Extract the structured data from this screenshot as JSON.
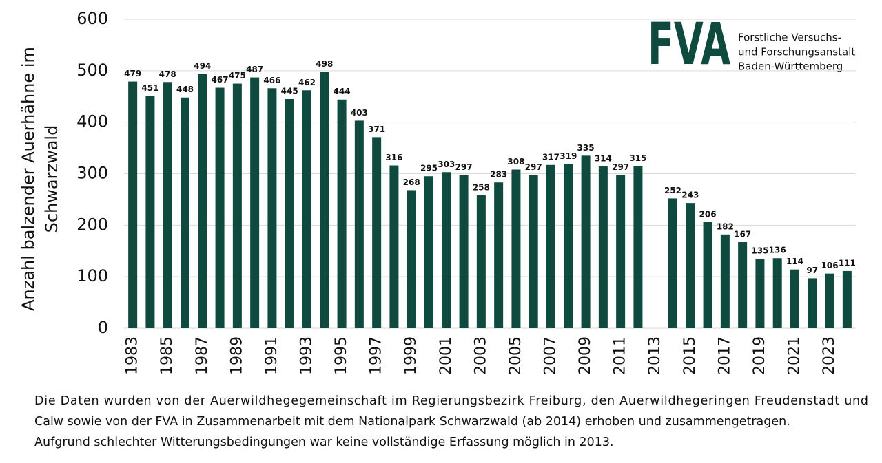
{
  "chart_data": {
    "type": "bar",
    "y_label": [
      "Anzahl balzender Auerhähne im",
      "Schwarzwald"
    ],
    "categories": [
      "1983",
      null,
      "1985",
      null,
      "1987",
      null,
      "1989",
      null,
      "1991",
      null,
      "1993",
      null,
      "1995",
      null,
      "1997",
      null,
      "1999",
      null,
      "2001",
      null,
      "2003",
      null,
      "2005",
      null,
      "2007",
      null,
      "2009",
      null,
      "2011",
      null,
      "2013",
      null,
      "2015",
      null,
      "2017",
      null,
      "2019",
      null,
      "2021",
      null,
      "2023",
      null
    ],
    "values": [
      479,
      451,
      478,
      448,
      494,
      467,
      475,
      487,
      466,
      445,
      462,
      498,
      444,
      403,
      371,
      316,
      268,
      295,
      303,
      297,
      258,
      283,
      308,
      297,
      317,
      319,
      335,
      314,
      297,
      315,
      null,
      252,
      243,
      206,
      182,
      167,
      135,
      136,
      114,
      97,
      106,
      111
    ],
    "color": "#0e4a3e",
    "ylim": [
      0,
      600
    ],
    "yticks": [
      0,
      100,
      200,
      300,
      400,
      500,
      600
    ],
    "grid": true,
    "logo": {
      "mark": "FVA",
      "lines": [
        "Forstliche Versuchs-",
        "und Forschungsanstalt",
        "Baden-Württemberg"
      ]
    },
    "note": [
      "Die Daten wurden von der Auerwildhegegemeinschaft im Regierungsbezirk Freiburg, den Auerwildhegeringen Freudenstadt und",
      "Calw sowie von der FVA in Zusammenarbeit mit dem Nationalpark Schwarzwald (ab 2014) erhoben und zusammengetragen.",
      "Aufgrund schlechter Witterungsbedingungen war keine vollständige Erfassung möglich in 2013."
    ]
  }
}
